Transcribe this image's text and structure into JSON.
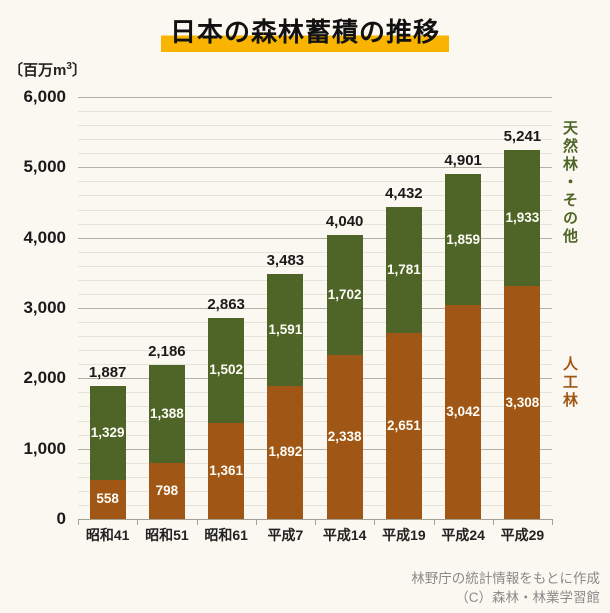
{
  "unit": {
    "prefix": "〔百万m",
    "sup": "3",
    "suffix": "〕"
  },
  "source": {
    "line1": "林野庁の統計情報をもとに作成",
    "line2": "（C）森林・林業学習館"
  },
  "colors": {
    "background": "#faf8f0",
    "title_highlight": "#f8b400",
    "planted": "#a05614",
    "natural": "#4e6527",
    "grid_minor": "#e6e3d9",
    "grid_major": "#b3b0a6",
    "axis": "#a39f93",
    "source_text": "#8a8a8a",
    "bar_value_text": "#fdfcf6",
    "text": "#1a1a1a"
  },
  "chart_data": {
    "type": "bar",
    "stacked": true,
    "title": "日本の森林蓄積の推移",
    "unit_label": "〔百万m³〕",
    "categories": [
      "昭和41",
      "昭和51",
      "昭和61",
      "平成7",
      "平成14",
      "平成19",
      "平成24",
      "平成29"
    ],
    "series": [
      {
        "name": "人工林",
        "color_key": "planted",
        "values": [
          558,
          798,
          1361,
          1892,
          2338,
          2651,
          3042,
          3308
        ]
      },
      {
        "name": "天然林・その他",
        "color_key": "natural",
        "values": [
          1329,
          1388,
          1502,
          1591,
          1702,
          1781,
          1859,
          1933
        ]
      }
    ],
    "totals": [
      1887,
      2186,
      2863,
      3483,
      4040,
      4432,
      4901,
      5241
    ],
    "ylim": [
      0,
      6000
    ],
    "y_major_step": 1000,
    "y_minor_step": 200,
    "grid": "horizontal-major-and-minor",
    "legend_position": "right-vertical",
    "source_note": "林野庁の統計情報をもとに作成 （C）森林・林業学習館"
  }
}
